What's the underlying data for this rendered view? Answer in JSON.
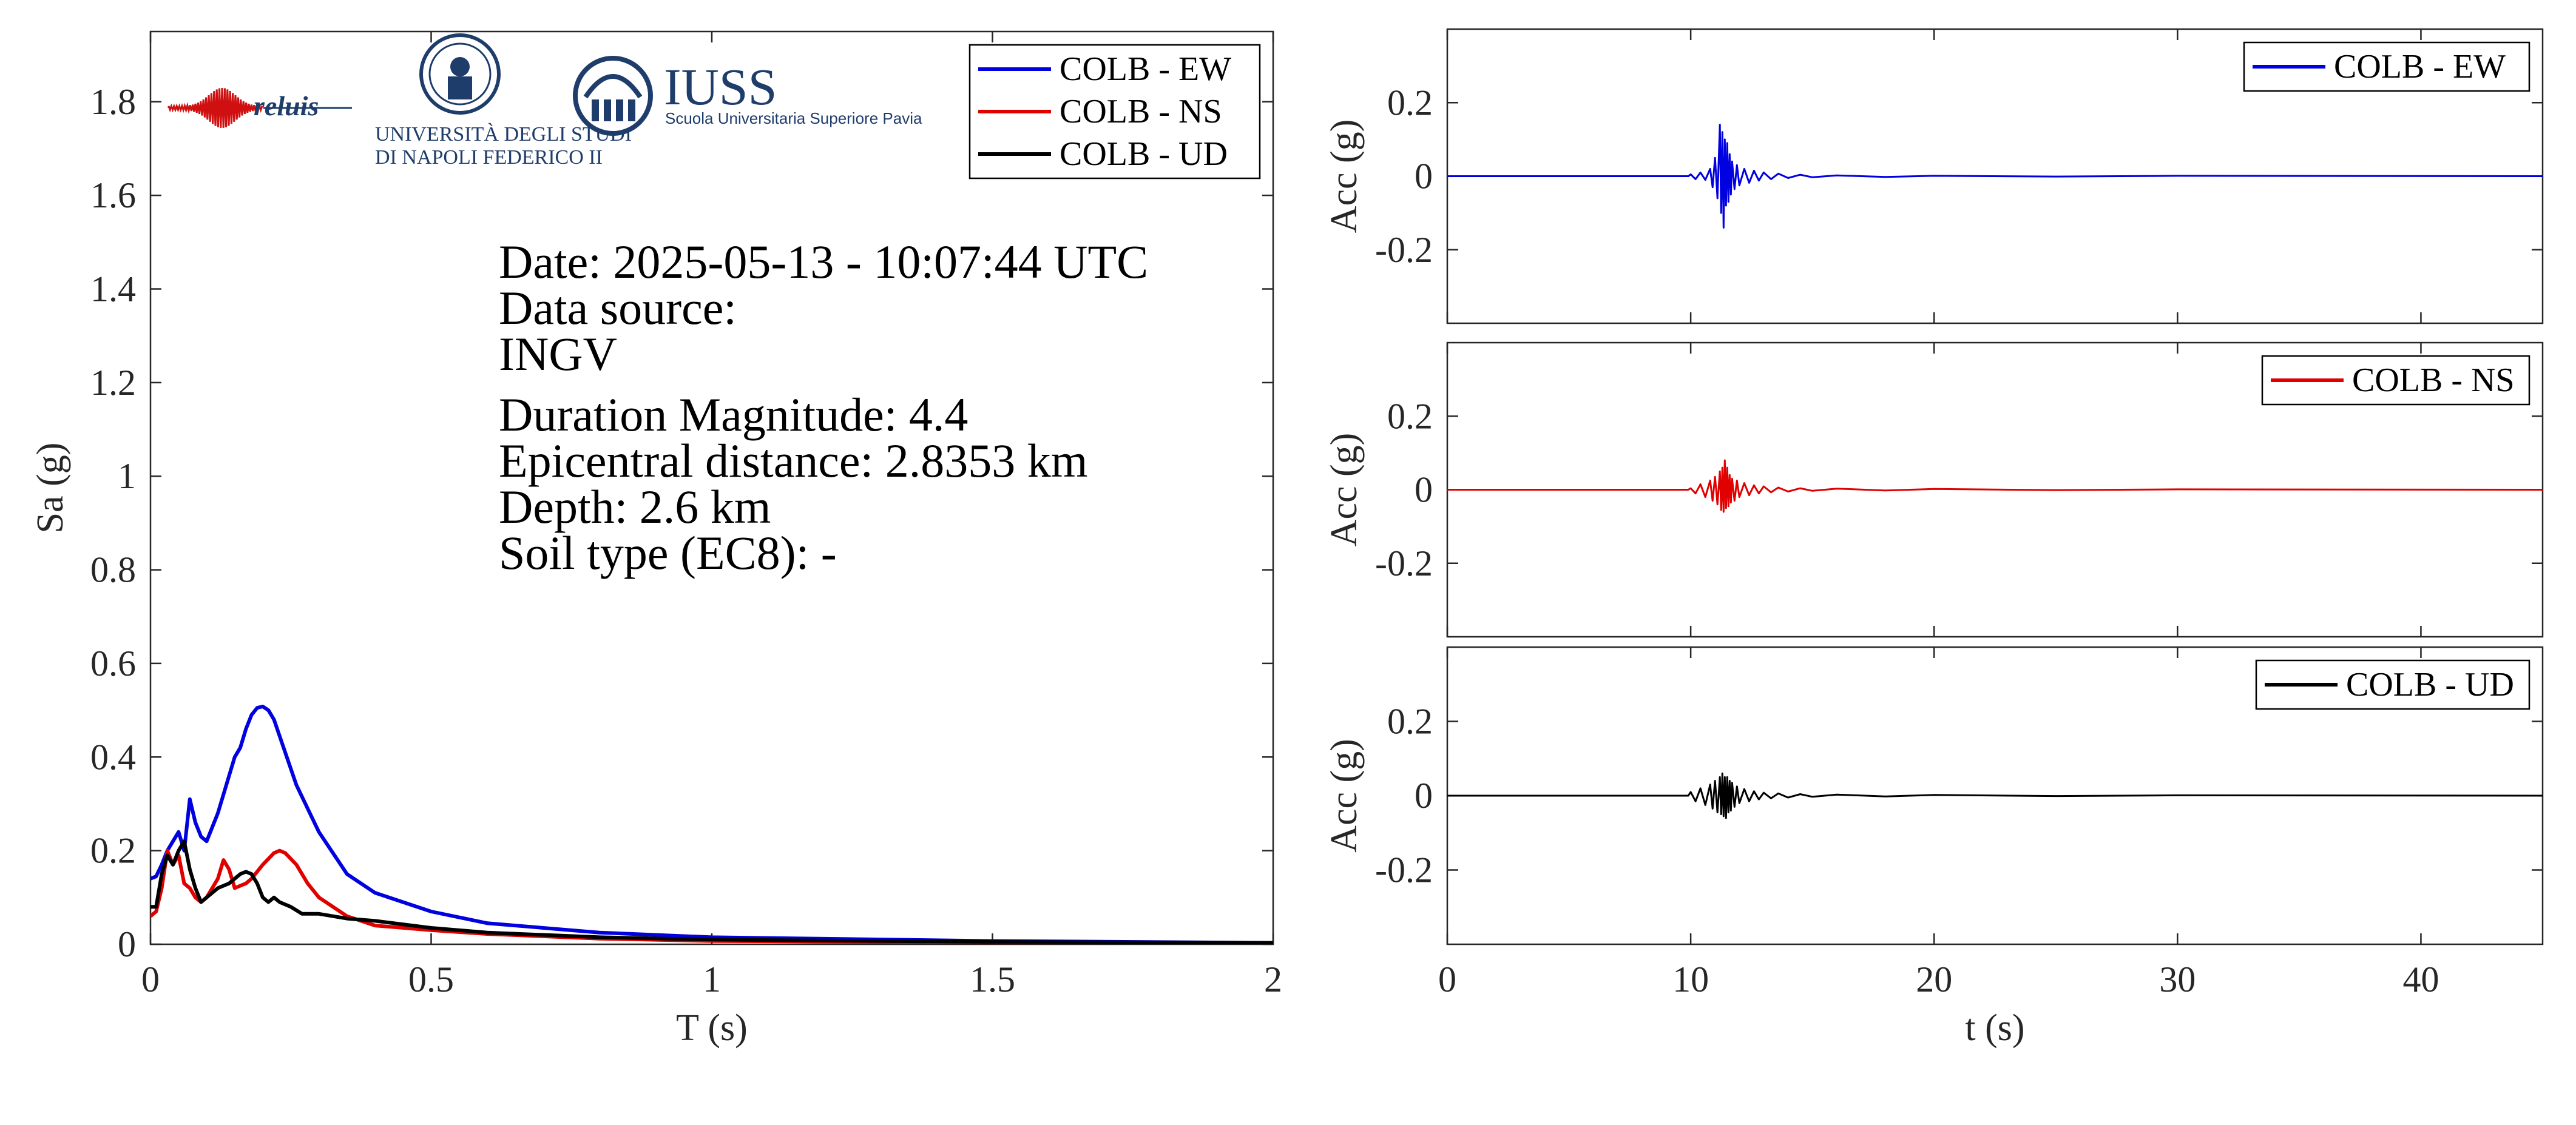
{
  "colors": {
    "EW": "#0000e0",
    "NS": "#e00000",
    "UD": "#000000",
    "axis": "#262626"
  },
  "logos": {
    "reluis": {
      "text": "reluis",
      "icon": "seismogram-icon"
    },
    "unina": {
      "text_line1": "UNIVERSITÀ DEGLI STUDI",
      "text_line2": "DI NAPOLI FEDERICO II",
      "icon": "university-seal-icon"
    },
    "iuss": {
      "title": "IUSS",
      "subtitle": "Scuola Universitaria Superiore Pavia",
      "icon": "iuss-emblem-icon"
    }
  },
  "info": {
    "date": "Date: 2025-05-13 - 10:07:44 UTC",
    "source_label": "Data source:",
    "source": "INGV",
    "magnitude": "Duration Magnitude: 4.4",
    "distance": "Epicentral distance: 2.8353 km",
    "depth": "Depth: 2.6 km",
    "soil": "Soil type (EC8): -"
  },
  "chart_data": [
    {
      "type": "line",
      "xlabel": "T (s)",
      "ylabel": "Sa (g)",
      "xlim": [
        0,
        2
      ],
      "ylim": [
        0,
        1.95
      ],
      "xticks": [
        0,
        0.5,
        1,
        1.5,
        2
      ],
      "xtick_labels": [
        "0",
        "0.5",
        "1",
        "1.5",
        "2"
      ],
      "yticks": [
        0,
        0.2,
        0.4,
        0.6,
        0.8,
        1,
        1.2,
        1.4,
        1.6,
        1.8
      ],
      "ytick_labels": [
        "0",
        "0.2",
        "0.4",
        "0.6",
        "0.8",
        "1",
        "1.2",
        "1.4",
        "1.6",
        "1.8"
      ],
      "grid": false,
      "legend": "top-right",
      "series": [
        {
          "name": "COLB - EW",
          "color": "#0000e0",
          "x": [
            0,
            0.01,
            0.02,
            0.03,
            0.04,
            0.05,
            0.06,
            0.07,
            0.08,
            0.09,
            0.1,
            0.12,
            0.14,
            0.15,
            0.16,
            0.17,
            0.18,
            0.19,
            0.2,
            0.21,
            0.22,
            0.24,
            0.26,
            0.3,
            0.35,
            0.4,
            0.5,
            0.6,
            0.8,
            1.0,
            1.5,
            2.0
          ],
          "y": [
            0.14,
            0.145,
            0.17,
            0.2,
            0.22,
            0.24,
            0.2,
            0.31,
            0.26,
            0.23,
            0.22,
            0.28,
            0.36,
            0.4,
            0.42,
            0.46,
            0.49,
            0.505,
            0.508,
            0.5,
            0.48,
            0.41,
            0.34,
            0.24,
            0.15,
            0.11,
            0.07,
            0.045,
            0.025,
            0.015,
            0.007,
            0.003
          ]
        },
        {
          "name": "COLB - NS",
          "color": "#e00000",
          "x": [
            0,
            0.01,
            0.02,
            0.03,
            0.04,
            0.05,
            0.06,
            0.07,
            0.08,
            0.09,
            0.1,
            0.12,
            0.13,
            0.14,
            0.15,
            0.16,
            0.17,
            0.18,
            0.2,
            0.22,
            0.23,
            0.24,
            0.26,
            0.28,
            0.3,
            0.35,
            0.4,
            0.5,
            0.6,
            0.8,
            1.0,
            1.5,
            2.0
          ],
          "y": [
            0.06,
            0.07,
            0.12,
            0.2,
            0.17,
            0.19,
            0.13,
            0.12,
            0.1,
            0.09,
            0.1,
            0.14,
            0.18,
            0.16,
            0.12,
            0.125,
            0.13,
            0.14,
            0.17,
            0.195,
            0.2,
            0.195,
            0.17,
            0.13,
            0.1,
            0.06,
            0.04,
            0.03,
            0.022,
            0.012,
            0.007,
            0.004,
            0.002
          ]
        },
        {
          "name": "COLB - UD",
          "color": "#000000",
          "x": [
            0,
            0.01,
            0.02,
            0.03,
            0.04,
            0.05,
            0.06,
            0.07,
            0.08,
            0.09,
            0.1,
            0.12,
            0.14,
            0.16,
            0.17,
            0.18,
            0.19,
            0.2,
            0.21,
            0.22,
            0.23,
            0.24,
            0.25,
            0.27,
            0.3,
            0.35,
            0.4,
            0.5,
            0.6,
            0.8,
            1.0,
            1.5,
            2.0
          ],
          "y": [
            0.08,
            0.08,
            0.15,
            0.19,
            0.17,
            0.2,
            0.22,
            0.16,
            0.12,
            0.09,
            0.1,
            0.12,
            0.13,
            0.15,
            0.155,
            0.15,
            0.13,
            0.1,
            0.09,
            0.1,
            0.09,
            0.085,
            0.08,
            0.065,
            0.065,
            0.055,
            0.05,
            0.035,
            0.025,
            0.015,
            0.01,
            0.005,
            0.003
          ]
        }
      ]
    },
    {
      "type": "line",
      "xlabel": "",
      "ylabel": "Acc (g)",
      "xlim": [
        0,
        45
      ],
      "ylim": [
        -0.4,
        0.4
      ],
      "xticks": [
        0,
        10,
        20,
        30,
        40
      ],
      "xtick_labels": [
        "",
        "",
        "",
        "",
        ""
      ],
      "yticks": [
        -0.2,
        0,
        0.2
      ],
      "ytick_labels": [
        "-0.2",
        "0",
        "0.2"
      ],
      "grid": false,
      "legend": "top-right",
      "series": [
        {
          "name": "COLB - EW",
          "color": "#0000e0",
          "x": [
            0,
            9.9,
            10.0,
            10.2,
            10.4,
            10.6,
            10.8,
            10.9,
            11.0,
            11.1,
            11.2,
            11.25,
            11.3,
            11.35,
            11.4,
            11.45,
            11.5,
            11.55,
            11.6,
            11.65,
            11.7,
            11.8,
            11.9,
            12.0,
            12.2,
            12.4,
            12.6,
            12.8,
            13.0,
            13.3,
            13.6,
            14.0,
            14.5,
            15.0,
            16.0,
            18.0,
            20.0,
            25.0,
            30.0,
            45.0
          ],
          "y": [
            0,
            0,
            0.005,
            -0.008,
            0.01,
            -0.01,
            0.02,
            -0.03,
            0.05,
            -0.06,
            0.14,
            -0.1,
            0.12,
            -0.14,
            0.1,
            -0.08,
            0.09,
            -0.07,
            0.06,
            -0.05,
            0.04,
            -0.035,
            0.03,
            -0.025,
            0.02,
            -0.018,
            0.015,
            -0.012,
            0.01,
            -0.008,
            0.007,
            -0.005,
            0.004,
            -0.003,
            0.002,
            -0.002,
            0.001,
            -0.001,
            0.001,
            0
          ]
        }
      ]
    },
    {
      "type": "line",
      "xlabel": "",
      "ylabel": "Acc (g)",
      "xlim": [
        0,
        45
      ],
      "ylim": [
        -0.4,
        0.4
      ],
      "xticks": [
        0,
        10,
        20,
        30,
        40
      ],
      "xtick_labels": [
        "",
        "",
        "",
        "",
        ""
      ],
      "yticks": [
        -0.2,
        0,
        0.2
      ],
      "ytick_labels": [
        "-0.2",
        "0",
        "0.2"
      ],
      "grid": false,
      "legend": "top-right",
      "series": [
        {
          "name": "COLB - NS",
          "color": "#e00000",
          "x": [
            0,
            9.9,
            10.0,
            10.2,
            10.4,
            10.6,
            10.8,
            10.9,
            11.0,
            11.1,
            11.2,
            11.25,
            11.3,
            11.35,
            11.4,
            11.45,
            11.5,
            11.55,
            11.6,
            11.65,
            11.7,
            11.8,
            11.9,
            12.0,
            12.2,
            12.4,
            12.6,
            12.8,
            13.0,
            13.3,
            13.6,
            14.0,
            14.5,
            15.0,
            16.0,
            18.0,
            20.0,
            25.0,
            30.0,
            45.0
          ],
          "y": [
            0,
            0,
            0.004,
            -0.01,
            0.015,
            -0.02,
            0.025,
            -0.03,
            0.035,
            -0.04,
            0.05,
            -0.055,
            0.06,
            -0.06,
            0.08,
            -0.05,
            0.06,
            -0.045,
            0.04,
            -0.035,
            0.03,
            -0.03,
            0.025,
            -0.02,
            0.018,
            -0.015,
            0.012,
            -0.01,
            0.009,
            -0.007,
            0.006,
            -0.005,
            0.004,
            -0.003,
            0.003,
            -0.002,
            0.002,
            -0.001,
            0.001,
            0
          ]
        }
      ]
    },
    {
      "type": "line",
      "xlabel": "t (s)",
      "ylabel": "Acc (g)",
      "xlim": [
        0,
        45
      ],
      "ylim": [
        -0.4,
        0.4
      ],
      "xticks": [
        0,
        10,
        20,
        30,
        40
      ],
      "xtick_labels": [
        "0",
        "10",
        "20",
        "30",
        "40"
      ],
      "yticks": [
        -0.2,
        0,
        0.2
      ],
      "ytick_labels": [
        "-0.2",
        "0",
        "0.2"
      ],
      "grid": false,
      "legend": "top-right",
      "series": [
        {
          "name": "COLB - UD",
          "color": "#000000",
          "x": [
            0,
            9.9,
            10.0,
            10.2,
            10.4,
            10.6,
            10.8,
            10.9,
            11.0,
            11.1,
            11.2,
            11.25,
            11.3,
            11.35,
            11.4,
            11.45,
            11.5,
            11.55,
            11.6,
            11.65,
            11.7,
            11.8,
            11.9,
            12.0,
            12.2,
            12.4,
            12.6,
            12.8,
            13.0,
            13.3,
            13.6,
            14.0,
            14.5,
            15.0,
            16.0,
            18.0,
            20.0,
            25.0,
            30.0,
            45.0
          ],
          "y": [
            0,
            0,
            0.01,
            -0.015,
            0.02,
            -0.025,
            0.03,
            -0.035,
            0.04,
            -0.045,
            0.05,
            -0.05,
            0.06,
            -0.055,
            0.05,
            -0.06,
            0.05,
            -0.045,
            0.04,
            -0.04,
            0.035,
            -0.03,
            0.025,
            -0.02,
            0.018,
            -0.015,
            0.012,
            -0.01,
            0.008,
            -0.007,
            0.006,
            -0.005,
            0.004,
            -0.003,
            0.003,
            -0.002,
            0.002,
            -0.001,
            0.001,
            0
          ]
        }
      ]
    }
  ]
}
